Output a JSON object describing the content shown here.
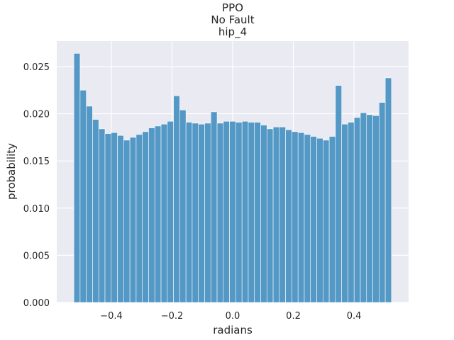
{
  "chart_data": {
    "type": "bar",
    "title_lines": [
      "PPO",
      "No Fault",
      "hip_4"
    ],
    "xlabel": "radians",
    "ylabel": "probability",
    "xlim": [
      -0.58,
      0.58
    ],
    "ylim": [
      0.0,
      0.0277
    ],
    "bin_start": -0.5236,
    "bin_end": 0.5236,
    "x_ticks": [
      {
        "value": -0.4,
        "label": "−0.4"
      },
      {
        "value": -0.2,
        "label": "−0.2"
      },
      {
        "value": 0.0,
        "label": "0.0"
      },
      {
        "value": 0.2,
        "label": "0.2"
      },
      {
        "value": 0.4,
        "label": "0.4"
      }
    ],
    "y_ticks": [
      {
        "value": 0.0,
        "label": "0.000"
      },
      {
        "value": 0.005,
        "label": "0.005"
      },
      {
        "value": 0.01,
        "label": "0.010"
      },
      {
        "value": 0.015,
        "label": "0.015"
      },
      {
        "value": 0.02,
        "label": "0.020"
      },
      {
        "value": 0.025,
        "label": "0.025"
      }
    ],
    "grid": true,
    "values": [
      0.0264,
      0.0225,
      0.0208,
      0.0194,
      0.0184,
      0.0179,
      0.018,
      0.0177,
      0.0172,
      0.0175,
      0.0178,
      0.0181,
      0.0185,
      0.0187,
      0.0189,
      0.0192,
      0.0219,
      0.0204,
      0.0191,
      0.019,
      0.0189,
      0.019,
      0.0202,
      0.019,
      0.0192,
      0.0192,
      0.0191,
      0.0192,
      0.0191,
      0.0191,
      0.0188,
      0.0184,
      0.0186,
      0.0186,
      0.0183,
      0.0181,
      0.018,
      0.0178,
      0.0176,
      0.0174,
      0.0172,
      0.0176,
      0.023,
      0.0189,
      0.0191,
      0.0196,
      0.0201,
      0.0199,
      0.0198,
      0.0212,
      0.0238
    ],
    "colors": {
      "plot_background": "#eaeaf2",
      "grid": "#ffffff",
      "bar_fill": "#5498c6",
      "bar_edge": "#ffffff",
      "text": "#262626"
    }
  }
}
